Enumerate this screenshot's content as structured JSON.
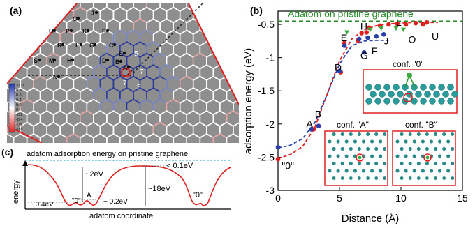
{
  "panel_a": {
    "label": "(a)",
    "site_labels": [
      "O",
      "J",
      "U",
      "P",
      "K",
      "F",
      "R",
      "L",
      "G",
      "C",
      "E",
      "S",
      "M",
      "H",
      "D",
      "B",
      "A",
      "N"
    ],
    "ring_labels": [
      "7",
      "7",
      "5",
      "5"
    ],
    "colorbar_ticks": [
      ">1.0",
      "0.8",
      "0.6",
      "0.4",
      "0.2",
      "0",
      "-0.2",
      "-0.4",
      "-0.6",
      "-0.8"
    ]
  },
  "panel_c": {
    "label": "(c)",
    "reference_label": "adatom adsorption energy on pristine graphene",
    "ylabel": "energy",
    "xlabel": "adatom coordinate",
    "annotations": [
      "~2eV",
      "< 0.1eV",
      "~18eV",
      "~ 0.4eV",
      "\"0\"",
      "A",
      "~ 0.2eV",
      "\"0\""
    ]
  },
  "chart_data": {
    "type": "scatter",
    "panel_label": "(b)",
    "xlabel": "Distance (Å)",
    "ylabel": "adsorption energy (eV)",
    "xlim": [
      0,
      15
    ],
    "ylim": [
      -3,
      -0.3
    ],
    "xticks": [
      "0",
      "5",
      "10",
      "15"
    ],
    "yticks": [
      "-0.5",
      "-1",
      "-1.5",
      "-2",
      "-2.5",
      "-3"
    ],
    "reference_line": {
      "y": -0.45,
      "label": "Adatom on pristine graphene",
      "color": "#2a8a2a"
    },
    "series": [
      {
        "color": "#e02020",
        "x": [
          0,
          2.9,
          3.3,
          5.1,
          5.4,
          6.5,
          6.8,
          7.2,
          7.4,
          8.3,
          9.0,
          9.7,
          10.4,
          11.2,
          11.8,
          12.1
        ],
        "y": [
          -2.53,
          -2.08,
          -2.03,
          -1.22,
          -0.78,
          -0.74,
          -0.63,
          -0.62,
          -0.55,
          -0.52,
          -0.5,
          -0.49,
          -0.5,
          -0.48,
          -0.5,
          -0.47
        ]
      },
      {
        "color": "#2a3fa8",
        "x": [
          0,
          2.7,
          3.3,
          5.0,
          5.4,
          6.6,
          7.0,
          7.3,
          8.0,
          8.6
        ],
        "y": [
          -2.35,
          -2.08,
          -2.03,
          -1.2,
          -0.82,
          -0.72,
          -0.92,
          -0.7,
          -0.68,
          -0.65
        ]
      },
      {
        "color": "#3aaa3a",
        "x": [
          5.6,
          7.5,
          8.4,
          9.6,
          10.2
        ],
        "y": [
          -0.62,
          -0.58,
          -0.56,
          -0.56,
          -0.58
        ]
      }
    ],
    "fit_curves": [
      {
        "color": "#e02020",
        "x": [
          0,
          1,
          2,
          3,
          4,
          5,
          6,
          7,
          8,
          9,
          10,
          11,
          12,
          13
        ],
        "y": [
          -2.52,
          -2.46,
          -2.34,
          -2.05,
          -1.55,
          -1.05,
          -0.72,
          -0.58,
          -0.52,
          -0.49,
          -0.48,
          -0.47,
          -0.47,
          -0.47
        ]
      },
      {
        "color": "#2a3fa8",
        "x": [
          0,
          1,
          2,
          3,
          4,
          5,
          6,
          7,
          8,
          9
        ],
        "y": [
          -2.36,
          -2.32,
          -2.22,
          -1.98,
          -1.55,
          -1.1,
          -0.82,
          -0.75,
          -0.74,
          -0.74
        ]
      }
    ],
    "point_labels": [
      {
        "text": "\"0\"",
        "x": 0.3,
        "y": -2.68
      },
      {
        "text": "A",
        "x": 2.3,
        "y": -2.05
      },
      {
        "text": "B",
        "x": 3.0,
        "y": -1.9
      },
      {
        "text": "D",
        "x": 4.6,
        "y": -1.2
      },
      {
        "text": "E",
        "x": 5.1,
        "y": -0.75
      },
      {
        "text": "G",
        "x": 6.7,
        "y": -1.02
      },
      {
        "text": "H",
        "x": 6.7,
        "y": -0.58
      },
      {
        "text": "F",
        "x": 7.6,
        "y": -0.95
      },
      {
        "text": "J",
        "x": 8.6,
        "y": -0.8
      },
      {
        "text": "L",
        "x": 9.6,
        "y": -0.52
      },
      {
        "text": "O",
        "x": 10.6,
        "y": -0.78
      },
      {
        "text": "U",
        "x": 12.5,
        "y": -0.73
      }
    ],
    "insets": [
      "conf. \"0\"",
      "conf. \"A\"",
      "conf. \"B\""
    ]
  }
}
